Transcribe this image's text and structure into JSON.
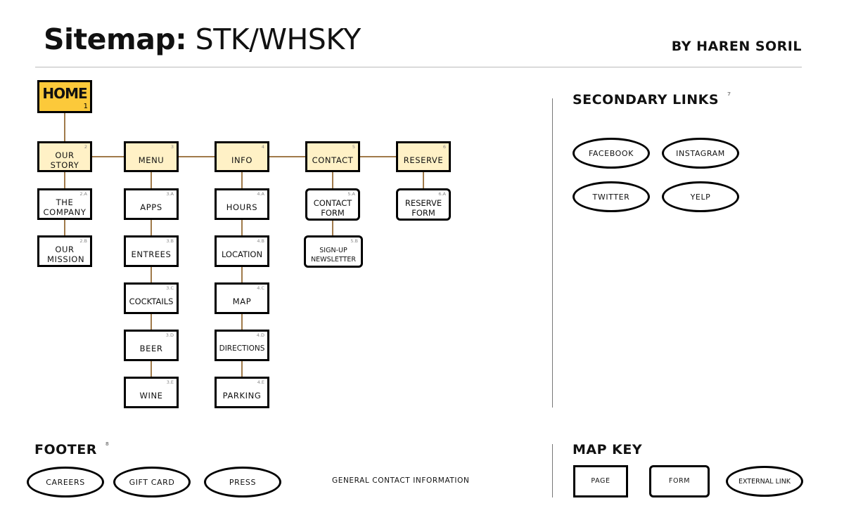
{
  "header": {
    "title_bold": "Sitemap:",
    "title_rest": "STK/WHSKY",
    "author": "BY HAREN SORIL"
  },
  "colors": {
    "home": "#fcc93a",
    "primary": "#fff1c6",
    "connector": "#a07a4a"
  },
  "home": {
    "label": "HOME",
    "num": "1"
  },
  "primary": [
    {
      "label": "OUR STORY",
      "num": "2"
    },
    {
      "label": "MENU",
      "num": "3"
    },
    {
      "label": "INFO",
      "num": "4"
    },
    {
      "label": "CONTACT",
      "num": "5"
    },
    {
      "label": "RESERVE",
      "num": "6"
    }
  ],
  "story": [
    {
      "label": "THE COMPANY",
      "num": "2.A"
    },
    {
      "label": "OUR MISSION",
      "num": "2.B"
    }
  ],
  "menu": [
    {
      "label": "APPS",
      "num": "3.A"
    },
    {
      "label": "ENTREES",
      "num": "3.B"
    },
    {
      "label": "COCKTAILS",
      "num": "3.C"
    },
    {
      "label": "BEER",
      "num": "3.D"
    },
    {
      "label": "WINE",
      "num": "3.E"
    }
  ],
  "info": [
    {
      "label": "HOURS",
      "num": "4.A"
    },
    {
      "label": "LOCATION",
      "num": "4.B"
    },
    {
      "label": "MAP",
      "num": "4.C"
    },
    {
      "label": "DIRECTIONS",
      "num": "4.D"
    },
    {
      "label": "PARKING",
      "num": "4.E"
    }
  ],
  "contact": [
    {
      "label": "CONTACT FORM",
      "num": "5.A"
    },
    {
      "label": "SIGN-UP NEWSLETTER",
      "num": "5.B"
    }
  ],
  "reserve": [
    {
      "label": "RESERVE FORM",
      "num": "6.A"
    }
  ],
  "secondary": {
    "title": "SECONDARY LINKS",
    "num": "7",
    "links": [
      "FACEBOOK",
      "INSTAGRAM",
      "TWITTER",
      "YELP"
    ]
  },
  "footer": {
    "title": "FOOTER",
    "num": "8",
    "links": [
      "CAREERS",
      "GIFT CARD",
      "PRESS"
    ],
    "text": "GENERAL CONTACT INFORMATION"
  },
  "key": {
    "title": "MAP KEY",
    "page": "PAGE",
    "form": "FORM",
    "external": "EXTERNAL LINK"
  }
}
